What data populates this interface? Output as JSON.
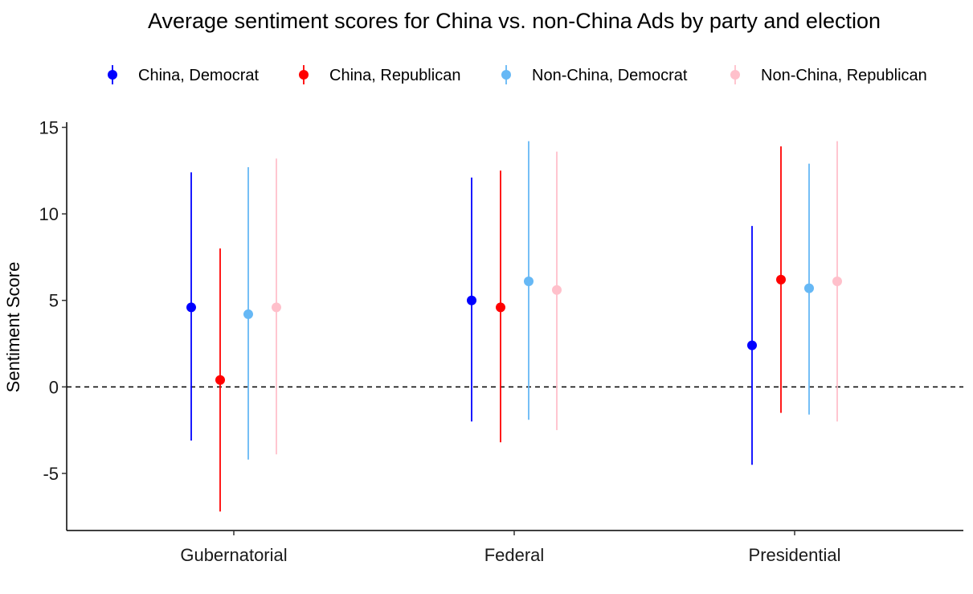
{
  "chart_data": {
    "type": "pointrange",
    "title": "Average sentiment scores for China vs. non-China Ads by party and election",
    "xlabel": "",
    "ylabel": "Sentiment Score",
    "ylim": [
      -8.3,
      15.3
    ],
    "yticks": [
      -5,
      0,
      5,
      10,
      15
    ],
    "yticklabels": [
      "-5",
      "0",
      "5",
      "10",
      "15"
    ],
    "reference_line": {
      "y": 0,
      "style": "dashed"
    },
    "legend_position": "top",
    "categories": [
      "Gubernatorial",
      "Federal",
      "Presidential"
    ],
    "series": [
      {
        "name": "China, Democrat",
        "color": "#0000ff",
        "means": [
          4.6,
          5.0,
          2.4
        ],
        "lower": [
          -3.1,
          -2.0,
          -4.5
        ],
        "upper": [
          12.4,
          12.1,
          9.3
        ]
      },
      {
        "name": "China, Republican",
        "color": "#ff0000",
        "means": [
          0.4,
          4.6,
          6.2
        ],
        "lower": [
          -7.2,
          -3.2,
          -1.5
        ],
        "upper": [
          8.0,
          12.5,
          13.9
        ]
      },
      {
        "name": "Non-China, Democrat",
        "color": "#66b8f5",
        "means": [
          4.2,
          6.1,
          5.7
        ],
        "lower": [
          -4.2,
          -1.9,
          -1.6
        ],
        "upper": [
          12.7,
          14.2,
          12.9
        ]
      },
      {
        "name": "Non-China, Republican",
        "color": "#ffc0cb",
        "means": [
          4.6,
          5.6,
          6.1
        ],
        "lower": [
          -3.9,
          -2.5,
          -2.0
        ],
        "upper": [
          13.2,
          13.6,
          14.2
        ]
      }
    ]
  }
}
